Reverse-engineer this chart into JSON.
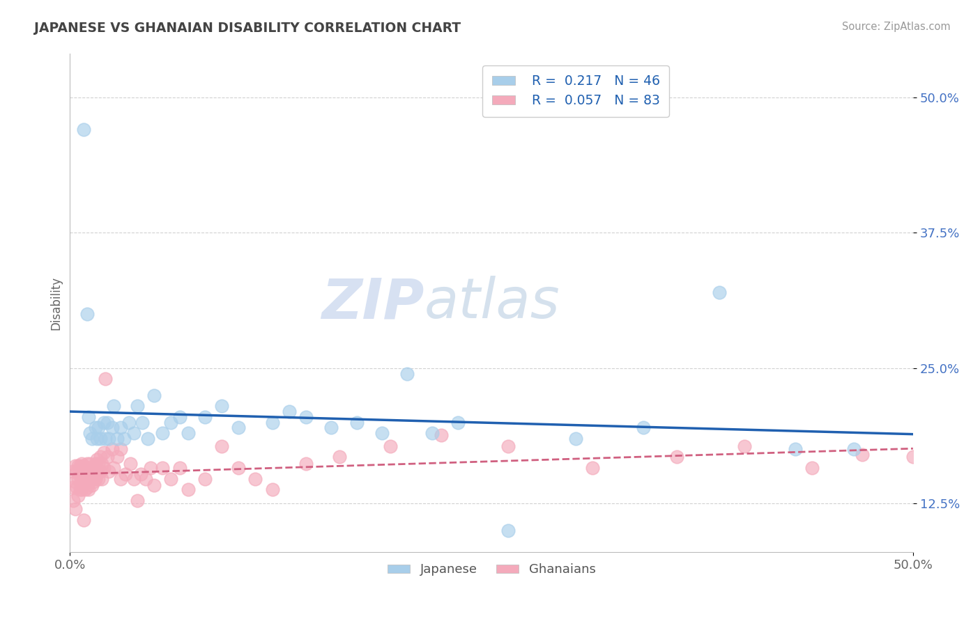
{
  "title": "JAPANESE VS GHANAIAN DISABILITY CORRELATION CHART",
  "source": "Source: ZipAtlas.com",
  "ylabel": "Disability",
  "yticks": [
    0.125,
    0.25,
    0.375,
    0.5
  ],
  "ytick_labels": [
    "12.5%",
    "25.0%",
    "37.5%",
    "50.0%"
  ],
  "xlim": [
    0.0,
    0.5
  ],
  "ylim": [
    0.08,
    0.54
  ],
  "japanese_R": 0.217,
  "japanese_N": 46,
  "ghanaian_R": 0.057,
  "ghanaian_N": 83,
  "japanese_color": "#A8CEEA",
  "ghanaian_color": "#F4AABB",
  "japanese_line_color": "#2060B0",
  "ghanaian_line_color": "#D06080",
  "watermark_zip": "ZIP",
  "watermark_atlas": "atlas",
  "background_color": "#FFFFFF",
  "japanese_x": [
    0.008,
    0.01,
    0.011,
    0.012,
    0.013,
    0.015,
    0.016,
    0.017,
    0.018,
    0.02,
    0.021,
    0.022,
    0.023,
    0.025,
    0.026,
    0.028,
    0.03,
    0.032,
    0.035,
    0.038,
    0.04,
    0.043,
    0.046,
    0.05,
    0.055,
    0.06,
    0.065,
    0.07,
    0.08,
    0.09,
    0.1,
    0.12,
    0.13,
    0.14,
    0.155,
    0.17,
    0.185,
    0.2,
    0.215,
    0.23,
    0.26,
    0.3,
    0.34,
    0.385,
    0.43,
    0.465
  ],
  "japanese_y": [
    0.47,
    0.3,
    0.205,
    0.19,
    0.185,
    0.195,
    0.185,
    0.195,
    0.185,
    0.2,
    0.185,
    0.2,
    0.185,
    0.195,
    0.215,
    0.185,
    0.195,
    0.185,
    0.2,
    0.19,
    0.215,
    0.2,
    0.185,
    0.225,
    0.19,
    0.2,
    0.205,
    0.19,
    0.205,
    0.215,
    0.195,
    0.2,
    0.21,
    0.205,
    0.195,
    0.2,
    0.19,
    0.245,
    0.19,
    0.2,
    0.1,
    0.185,
    0.195,
    0.32,
    0.175,
    0.175
  ],
  "ghanaian_x": [
    0.002,
    0.002,
    0.003,
    0.003,
    0.004,
    0.004,
    0.005,
    0.005,
    0.006,
    0.006,
    0.006,
    0.007,
    0.007,
    0.007,
    0.008,
    0.008,
    0.009,
    0.009,
    0.009,
    0.01,
    0.01,
    0.01,
    0.011,
    0.011,
    0.011,
    0.012,
    0.012,
    0.013,
    0.013,
    0.014,
    0.014,
    0.015,
    0.015,
    0.016,
    0.016,
    0.017,
    0.017,
    0.018,
    0.018,
    0.019,
    0.019,
    0.02,
    0.02,
    0.021,
    0.022,
    0.023,
    0.025,
    0.026,
    0.028,
    0.03,
    0.03,
    0.033,
    0.036,
    0.038,
    0.04,
    0.042,
    0.045,
    0.048,
    0.05,
    0.055,
    0.06,
    0.065,
    0.07,
    0.08,
    0.09,
    0.1,
    0.11,
    0.12,
    0.14,
    0.16,
    0.19,
    0.22,
    0.26,
    0.31,
    0.36,
    0.4,
    0.44,
    0.47,
    0.5,
    0.002,
    0.003,
    0.005,
    0.008
  ],
  "ghanaian_y": [
    0.155,
    0.14,
    0.16,
    0.145,
    0.155,
    0.14,
    0.16,
    0.148,
    0.16,
    0.15,
    0.138,
    0.162,
    0.148,
    0.138,
    0.16,
    0.148,
    0.158,
    0.145,
    0.138,
    0.162,
    0.15,
    0.14,
    0.158,
    0.148,
    0.138,
    0.162,
    0.148,
    0.158,
    0.142,
    0.158,
    0.145,
    0.162,
    0.148,
    0.166,
    0.152,
    0.162,
    0.148,
    0.168,
    0.155,
    0.162,
    0.148,
    0.172,
    0.158,
    0.24,
    0.168,
    0.155,
    0.175,
    0.158,
    0.168,
    0.148,
    0.175,
    0.152,
    0.162,
    0.148,
    0.128,
    0.152,
    0.148,
    0.158,
    0.142,
    0.158,
    0.148,
    0.158,
    0.138,
    0.148,
    0.178,
    0.158,
    0.148,
    0.138,
    0.162,
    0.168,
    0.178,
    0.188,
    0.178,
    0.158,
    0.168,
    0.178,
    0.158,
    0.17,
    0.168,
    0.128,
    0.12,
    0.132,
    0.11
  ]
}
